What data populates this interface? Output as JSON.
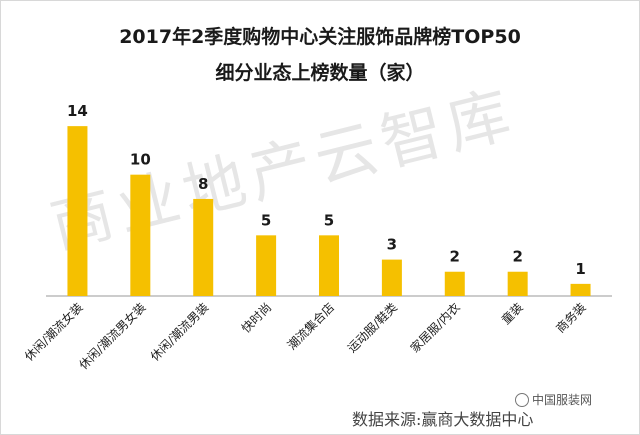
{
  "watermark": "商业地产云智库",
  "source": {
    "label": "数据来源:",
    "name": "赢商大数据中心"
  },
  "credit": "中国服装网",
  "colors": {
    "bar": "#F5C000",
    "axis": "#999999",
    "label": "#1a1a1a"
  },
  "chart_data": {
    "type": "bar",
    "title": "2017年2季度购物中心关注服饰品牌榜TOP50",
    "subtitle": "细分业态上榜数量（家）",
    "xlabel": "",
    "ylabel": "",
    "categories": [
      "休闲/潮流女装",
      "休闲/潮流男女装",
      "休闲/潮流男装",
      "快时尚",
      "潮流集合店",
      "运动服/鞋类",
      "家居服/内衣",
      "童装",
      "商务装"
    ],
    "values": [
      14,
      10,
      8,
      5,
      5,
      3,
      2,
      2,
      1
    ],
    "ylim": [
      0,
      15
    ],
    "grid": false,
    "legend": "none"
  }
}
